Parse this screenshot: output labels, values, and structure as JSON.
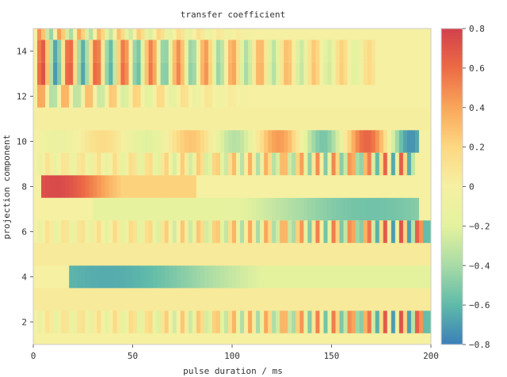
{
  "chart_data": {
    "type": "heatmap",
    "title": "transfer coefficient",
    "xlabel": "pulse duration / ms",
    "ylabel": "projection component",
    "xlim": [
      0,
      200
    ],
    "ylim": [
      1,
      15
    ],
    "x_ticks": [
      0,
      50,
      100,
      150,
      200
    ],
    "y_ticks": [
      2,
      4,
      6,
      8,
      10,
      12,
      14
    ],
    "colorbar": {
      "range": [
        -0.8,
        0.8
      ],
      "ticks": [
        0.8,
        0.6,
        0.4,
        0.2,
        0,
        -0.2,
        -0.4,
        -0.6,
        -0.8
      ],
      "colormap": "Spectral_r",
      "colors": [
        "#3b7fb8",
        "#5fbaa9",
        "#a8dba6",
        "#e4f29e",
        "#f5f0a2",
        "#fdd882",
        "#f9a65a",
        "#ec6b45",
        "#d2404c"
      ]
    },
    "grid": false,
    "rows": [
      {
        "component": 1,
        "pattern": "flat",
        "amp": 0.0,
        "x_end": 200
      },
      {
        "component": 2,
        "pattern": "oscillation",
        "amp": 0.8,
        "periods": 4,
        "grow": "right",
        "x_end": 200
      },
      {
        "component": 3,
        "pattern": "flat",
        "amp": 0.05,
        "x_end": 200
      },
      {
        "component": 4,
        "pattern": "bump",
        "amp": -0.65,
        "x_start": 18,
        "peak": 35,
        "x_end": 200
      },
      {
        "component": 5,
        "pattern": "flat",
        "amp": 0.05,
        "x_end": 200
      },
      {
        "component": 6,
        "pattern": "oscillation",
        "amp": 0.8,
        "periods": 4,
        "grow": "right",
        "x_end": 200
      },
      {
        "component": 7,
        "pattern": "bump",
        "amp": -0.55,
        "x_start": 30,
        "peak": 170,
        "x_end": 192
      },
      {
        "component": 8,
        "pattern": "bump",
        "amp": 0.75,
        "x_start": 3,
        "peak": 10,
        "x_end": 80
      },
      {
        "component": 9,
        "pattern": "oscillation",
        "amp": 0.7,
        "periods": 4,
        "grow": "right",
        "x_end": 190
      },
      {
        "component": 10,
        "pattern": "oscillation",
        "amp": 0.75,
        "periods": 5,
        "grow": "right",
        "x_end": 192
      },
      {
        "component": 11,
        "pattern": "flat",
        "amp": 0.02,
        "x_end": 200
      },
      {
        "component": 12,
        "pattern": "decay",
        "amp": 0.45,
        "periods": 12,
        "x_end": 110
      },
      {
        "component": 13,
        "pattern": "oscillation",
        "amp": 0.75,
        "periods": 6,
        "grow": "left",
        "x_end": 170
      },
      {
        "component": 14,
        "pattern": "oscillation",
        "amp": 0.7,
        "periods": 6,
        "grow": "left",
        "x_end": 170
      },
      {
        "component": 15,
        "pattern": "decay",
        "amp": 0.5,
        "periods": 10,
        "x_end": 110
      }
    ]
  }
}
